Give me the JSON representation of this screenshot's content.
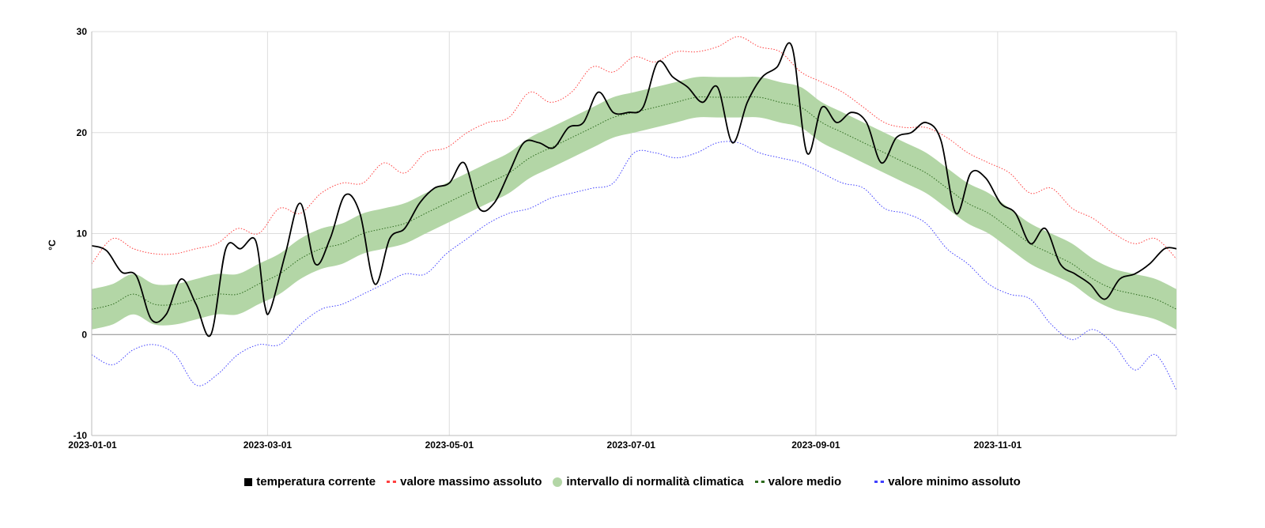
{
  "chart_data": {
    "type": "line",
    "ylabel": "°C",
    "ylim": [
      -10,
      30
    ],
    "yticks": [
      "-10",
      "0",
      "10",
      "20",
      "30"
    ],
    "xlim_days": [
      0,
      364
    ],
    "xticks": [
      {
        "day": 0,
        "label": "2023-01-01"
      },
      {
        "day": 59,
        "label": "2023-03-01"
      },
      {
        "day": 120,
        "label": "2023-05-01"
      },
      {
        "day": 181,
        "label": "2023-07-01"
      },
      {
        "day": 243,
        "label": "2023-09-01"
      },
      {
        "day": 304,
        "label": "2023-11-01"
      }
    ],
    "grid": true,
    "legend_position": "bottom",
    "legend": {
      "current": "temperatura corrente",
      "max": "valore massimo assoluto",
      "band": "intervallo di normalità climatica",
      "mean": "valore medio",
      "min": "valore minimo assoluto"
    },
    "colors": {
      "current": "#000000",
      "max": "#ff4040",
      "band": "#b3d6a6",
      "mean": "#2e6b1f",
      "min": "#4040ff"
    },
    "weekly_days": [
      0,
      7,
      14,
      21,
      28,
      35,
      42,
      49,
      56,
      63,
      70,
      77,
      84,
      91,
      98,
      105,
      112,
      119,
      126,
      133,
      140,
      147,
      154,
      161,
      168,
      175,
      182,
      189,
      196,
      203,
      210,
      217,
      224,
      231,
      238,
      245,
      252,
      259,
      266,
      273,
      280,
      287,
      294,
      301,
      308,
      315,
      322,
      329,
      336,
      343,
      350,
      357,
      364
    ],
    "max": [
      7,
      9.5,
      8.5,
      8,
      8,
      8.5,
      9,
      10.5,
      10,
      12.5,
      12,
      14,
      15,
      15,
      17,
      16,
      18,
      18.5,
      20,
      21,
      21.5,
      24,
      23,
      24,
      26.5,
      26,
      27.5,
      27,
      28,
      28,
      28.5,
      29.5,
      28.5,
      28,
      26,
      25,
      24,
      22.5,
      21,
      20.5,
      20.5,
      19.5,
      18,
      17,
      16,
      14,
      14.5,
      12.5,
      11.5,
      10,
      9,
      9.5,
      7.5
    ],
    "min": [
      -2,
      -3,
      -1.5,
      -1,
      -2,
      -5,
      -4,
      -2,
      -1,
      -1,
      1,
      2.5,
      3,
      4,
      5,
      6,
      6,
      8,
      9.5,
      11,
      12,
      12.5,
      13.5,
      14,
      14.5,
      15,
      18,
      18,
      17.5,
      18,
      19,
      19,
      18,
      17.5,
      17,
      16,
      15,
      14.5,
      12.5,
      12,
      11,
      8.5,
      7,
      5,
      4,
      3.5,
      1,
      -0.5,
      0.5,
      -1,
      -3.5,
      -2,
      -5.5
    ],
    "mean": [
      2.5,
      3,
      4,
      3,
      3,
      3.5,
      4,
      4,
      5,
      6,
      7.5,
      8.5,
      9,
      10,
      10.5,
      11,
      12,
      13,
      14,
      15,
      16,
      17.5,
      18.5,
      19.5,
      20.5,
      21.5,
      22,
      22.5,
      23,
      23.5,
      23.5,
      23.5,
      23.5,
      23,
      22.5,
      21,
      20,
      19,
      18,
      17,
      16,
      14.5,
      13,
      12,
      10.5,
      9,
      8,
      7,
      5.5,
      4.5,
      4,
      3.5,
      2.5
    ],
    "band_low": [
      0.5,
      1,
      2,
      1,
      1,
      1.5,
      2,
      2,
      3,
      4,
      5.5,
      6.5,
      7,
      8,
      8.5,
      9,
      10,
      11,
      12,
      13,
      14,
      15.5,
      16.5,
      17.5,
      18.5,
      19.5,
      20,
      20.5,
      21,
      21.5,
      21.5,
      21.5,
      21.5,
      21,
      20.5,
      19,
      18,
      17,
      16,
      15,
      14,
      12.5,
      11,
      10,
      8.5,
      7,
      6,
      5,
      3.5,
      2.5,
      2,
      1.5,
      0.5
    ],
    "band_high": [
      4.5,
      5,
      6,
      5,
      5,
      5.5,
      6,
      6,
      7,
      8,
      9.5,
      10.5,
      11,
      12,
      12.5,
      13,
      14,
      15,
      16,
      17,
      18,
      19.5,
      20.5,
      21.5,
      22.5,
      23.5,
      24,
      24.5,
      25,
      25.5,
      25.5,
      25.5,
      25.5,
      25,
      24.5,
      23,
      22,
      21,
      20,
      19,
      18,
      16.5,
      15,
      14,
      12.5,
      11,
      10,
      9,
      7.5,
      6.5,
      6,
      5.5,
      4.5
    ],
    "current_days": [
      0,
      5,
      10,
      15,
      20,
      25,
      30,
      35,
      40,
      45,
      50,
      55,
      58,
      60,
      65,
      70,
      75,
      80,
      85,
      90,
      95,
      100,
      105,
      110,
      115,
      120,
      125,
      130,
      135,
      140,
      145,
      150,
      155,
      160,
      165,
      170,
      175,
      180,
      185,
      190,
      195,
      200,
      205,
      210,
      215,
      220,
      225,
      230,
      235,
      240,
      245,
      250,
      255,
      260,
      265,
      270,
      275,
      280,
      285,
      290,
      295,
      300,
      305,
      310,
      315,
      320,
      325,
      330,
      335,
      340,
      345,
      350,
      355,
      360,
      364
    ],
    "current": [
      8.8,
      8.3,
      6.2,
      5.8,
      1.5,
      2,
      5.5,
      3,
      0,
      8.5,
      8.5,
      9.3,
      3,
      2.5,
      8,
      13,
      7,
      9.5,
      13.8,
      12,
      5,
      9.5,
      10.5,
      13,
      14.5,
      15,
      17,
      12.5,
      13,
      16,
      19,
      19,
      18.5,
      20.5,
      21,
      24,
      22,
      22,
      22.5,
      27,
      25.5,
      24.5,
      23,
      24.5,
      19,
      23,
      25.5,
      26.5,
      28.5,
      18,
      22.5,
      21,
      22,
      21,
      17,
      19.5,
      20,
      21,
      19.2,
      12,
      16,
      15.5,
      13,
      12,
      9,
      10.5,
      7,
      6,
      5,
      3.5,
      5.5,
      6,
      7,
      8.5,
      8.5
    ]
  }
}
